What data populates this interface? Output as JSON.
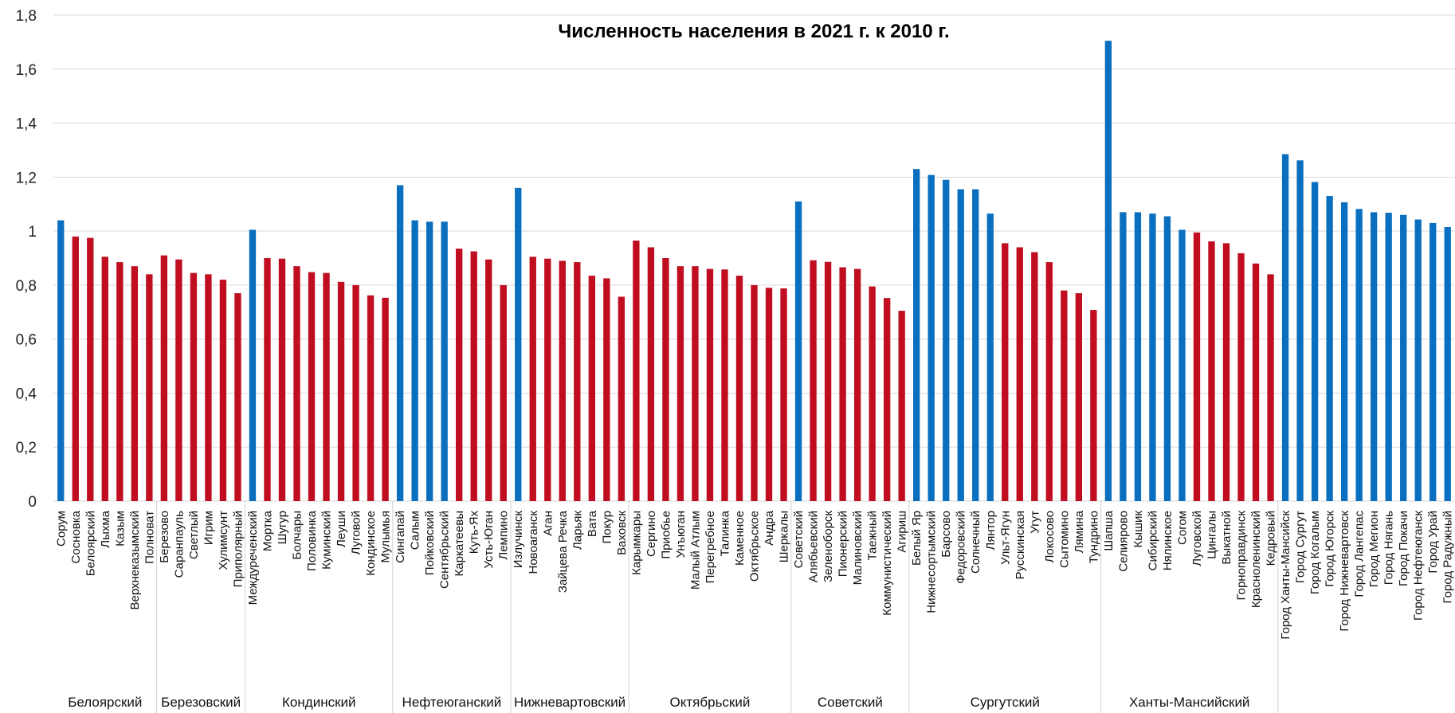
{
  "colors": {
    "above": "#0b6fc0",
    "below": "#c00d1f",
    "grid": "#d9d9d9",
    "axis": "#bfbfbf"
  },
  "chart_data": {
    "type": "bar",
    "title": "Численность населения в 2021 г. к 2010 г.",
    "xlabel": "",
    "ylabel": "",
    "ylim": [
      0,
      1.8
    ],
    "yticks": [
      "0",
      "0,2",
      "0,4",
      "0,6",
      "0,8",
      "1",
      "1,2",
      "1,4",
      "1,6",
      "1,8"
    ],
    "grid": true,
    "legend": "none",
    "groups": [
      {
        "name": "Белоярский",
        "categories": [
          "Сорум",
          "Сосновка",
          "Белоярский",
          "Лыхма",
          "Казым",
          "Верхнеказымский",
          "Полноват"
        ],
        "values": [
          1.04,
          0.98,
          0.975,
          0.905,
          0.885,
          0.87,
          0.84
        ],
        "colors": [
          "above",
          "below",
          "below",
          "below",
          "below",
          "below",
          "below"
        ]
      },
      {
        "name": "Березовский",
        "categories": [
          "Березово",
          "Саранпауль",
          "Светлый",
          "Игрим",
          "Хулимсунт",
          "Приполярный"
        ],
        "values": [
          0.91,
          0.895,
          0.845,
          0.84,
          0.82,
          0.77
        ],
        "colors": [
          "below",
          "below",
          "below",
          "below",
          "below",
          "below"
        ]
      },
      {
        "name": "Кондинский",
        "categories": [
          "Междуреченский",
          "Мортка",
          "Шугур",
          "Болчары",
          "Половинка",
          "Куминский",
          "Леуши",
          "Луговой",
          "Кондинское",
          "Мулымья"
        ],
        "values": [
          1.005,
          0.9,
          0.898,
          0.87,
          0.848,
          0.845,
          0.812,
          0.8,
          0.762,
          0.753
        ],
        "colors": [
          "above",
          "below",
          "below",
          "below",
          "below",
          "below",
          "below",
          "below",
          "below",
          "below"
        ]
      },
      {
        "name": "Нефтеюганский",
        "categories": [
          "Сингапай",
          "Салым",
          "Пойковский",
          "Сентябрьский",
          "Каркатеевы",
          "Куть-Ях",
          "Усть-Юган",
          "Лемпино"
        ],
        "values": [
          1.17,
          1.04,
          1.035,
          1.035,
          0.935,
          0.925,
          0.895,
          0.8
        ],
        "colors": [
          "above",
          "above",
          "above",
          "above",
          "below",
          "below",
          "below",
          "below"
        ]
      },
      {
        "name": "Нижневартовский",
        "categories": [
          "Излучинск",
          "Новоаганск",
          "Аган",
          "Зайцева Речка",
          "Ларьяк",
          "Вата",
          "Покур",
          "Ваховск"
        ],
        "values": [
          1.16,
          0.905,
          0.898,
          0.89,
          0.885,
          0.835,
          0.825,
          0.757
        ],
        "colors": [
          "above",
          "below",
          "below",
          "below",
          "below",
          "below",
          "below",
          "below"
        ]
      },
      {
        "name": "Октябрьский",
        "categories": [
          "Карымкары",
          "Сергино",
          "Приобье",
          "Унъюган",
          "Малый Атлым",
          "Перегребное",
          "Талинка",
          "Каменное",
          "Октябрьское",
          "Андра",
          "Шеркалы"
        ],
        "values": [
          0.965,
          0.94,
          0.9,
          0.87,
          0.87,
          0.86,
          0.858,
          0.835,
          0.8,
          0.79,
          0.788
        ],
        "colors": [
          "below",
          "below",
          "below",
          "below",
          "below",
          "below",
          "below",
          "below",
          "below",
          "below",
          "below"
        ]
      },
      {
        "name": "Советский",
        "categories": [
          "Советский",
          "Алябьевский",
          "Зеленоборск",
          "Пионерский",
          "Малиновский",
          "Таежный",
          "Коммунистический",
          "Агириш"
        ],
        "values": [
          1.11,
          0.892,
          0.886,
          0.866,
          0.86,
          0.795,
          0.752,
          0.705
        ],
        "colors": [
          "above",
          "below",
          "below",
          "below",
          "below",
          "below",
          "below",
          "below"
        ]
      },
      {
        "name": "Сургутский",
        "categories": [
          "Белый Яр",
          "Нижнесортымский",
          "Барсово",
          "Федоровский",
          "Солнечный",
          "Лянтор",
          "Ульт-Ягун",
          "Русскинская",
          "Угут",
          "Локосово",
          "Сытомино",
          "Лямина",
          "Тундрино"
        ],
        "values": [
          1.23,
          1.208,
          1.19,
          1.155,
          1.155,
          1.065,
          0.955,
          0.94,
          0.922,
          0.885,
          0.78,
          0.77,
          0.708
        ],
        "colors": [
          "above",
          "above",
          "above",
          "above",
          "above",
          "above",
          "below",
          "below",
          "below",
          "below",
          "below",
          "below",
          "below"
        ]
      },
      {
        "name": "Ханты-Мансийский",
        "categories": [
          "Шапша",
          "Селиярово",
          "Кышик",
          "Сибирский",
          "Нялинское",
          "Согом",
          "Луговской",
          "Цингалы",
          "Выкатной",
          "Горноправдинск",
          "Красноленинский",
          "Кедровый"
        ],
        "values": [
          1.705,
          1.07,
          1.07,
          1.065,
          1.055,
          1.005,
          0.995,
          0.962,
          0.955,
          0.918,
          0.88,
          0.84
        ],
        "colors": [
          "above",
          "above",
          "above",
          "above",
          "above",
          "above",
          "below",
          "below",
          "below",
          "below",
          "below",
          "below"
        ]
      },
      {
        "name": "",
        "categories": [
          "Город Ханты-Мансийск",
          "Город Сургут",
          "Город Когалым",
          "Город Югорск",
          "Город Нижневартовск",
          "Город Лангепас",
          "Город Мегион",
          "Город Нягань",
          "Город Покачи",
          "Город Нефтеюганск",
          "Город Урай",
          "Город Радужный"
        ],
        "values": [
          1.285,
          1.262,
          1.182,
          1.13,
          1.107,
          1.082,
          1.07,
          1.068,
          1.06,
          1.043,
          1.03,
          1.015
        ],
        "colors": [
          "above",
          "above",
          "above",
          "above",
          "above",
          "above",
          "above",
          "above",
          "above",
          "above",
          "above",
          "above"
        ]
      }
    ]
  }
}
